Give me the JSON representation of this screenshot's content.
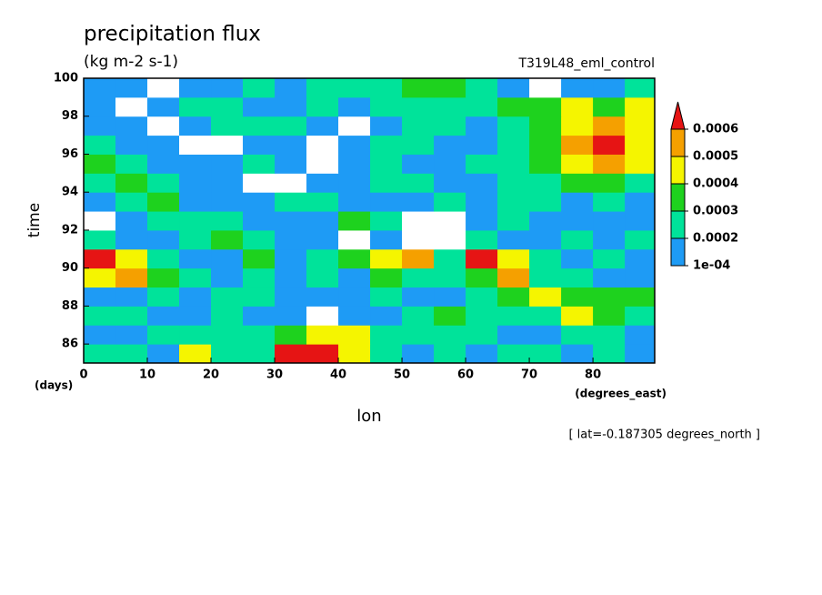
{
  "chart_data": {
    "type": "heatmap",
    "title": "precipitation flux",
    "subtitle": "(kg m-2 s-1)",
    "annotation": "T319L48_eml_control",
    "y_label": "time",
    "y_unit": "(days)",
    "x_label": "lon",
    "x_unit": "(degrees_east)",
    "footnote": "[ lat=-0.187305 degrees_north ]",
    "xlim": [
      0,
      89.7
    ],
    "xticks": [
      0,
      10,
      20,
      30,
      40,
      50,
      60,
      70,
      80
    ],
    "ylim": [
      85,
      100
    ],
    "yticks": [
      86,
      88,
      90,
      92,
      94,
      96,
      98,
      100
    ],
    "x": [
      2.5,
      7.5,
      12.5,
      17.5,
      22.5,
      27.5,
      32.5,
      37.5,
      42.5,
      47.5,
      52.5,
      57.5,
      62.5,
      67.5,
      72.5,
      77.5,
      82.5,
      87.5
    ],
    "y": [
      85.5,
      86.5,
      87.5,
      88.5,
      89.5,
      90.5,
      91.5,
      92.5,
      93.5,
      94.5,
      95.5,
      96.5,
      97.5,
      98.5,
      99.5
    ],
    "z": [
      [
        0.00025,
        0.00025,
        0.00015,
        0.00045,
        0.00025,
        0.00025,
        0.00065,
        0.00065,
        0.00045,
        0.00025,
        0.00015,
        0.00025,
        0.00015,
        0.00025,
        0.00025,
        0.00015,
        0.00025,
        0.00015
      ],
      [
        0.00015,
        0.00015,
        0.00025,
        0.00025,
        0.00025,
        0.00025,
        0.00035,
        0.00045,
        0.00045,
        0.00025,
        0.00025,
        0.00025,
        0.00025,
        0.00015,
        0.00015,
        0.00025,
        0.00025,
        0.00015
      ],
      [
        0.00025,
        0.00025,
        0.00015,
        0.00015,
        0.00025,
        0.00015,
        0.00015,
        8e-05,
        0.00015,
        0.00015,
        0.00025,
        0.00035,
        0.00025,
        0.00025,
        0.00025,
        0.00045,
        0.00035,
        0.00025
      ],
      [
        0.00015,
        0.00015,
        0.00025,
        0.00015,
        0.00025,
        0.00025,
        0.00015,
        0.00015,
        0.00015,
        0.00025,
        0.00015,
        0.00015,
        0.00025,
        0.00035,
        0.00045,
        0.00035,
        0.00035,
        0.00035
      ],
      [
        0.00045,
        0.00055,
        0.00035,
        0.00025,
        0.00015,
        0.00025,
        0.00015,
        0.00025,
        0.00015,
        0.00035,
        0.00025,
        0.00025,
        0.00035,
        0.00055,
        0.00025,
        0.00025,
        0.00015,
        0.00015
      ],
      [
        0.00065,
        0.00045,
        0.00025,
        0.00015,
        0.00015,
        0.00035,
        0.00015,
        0.00025,
        0.00035,
        0.00045,
        0.00055,
        0.00025,
        0.00065,
        0.00045,
        0.00025,
        0.00015,
        0.00025,
        0.00015
      ],
      [
        0.00025,
        0.00015,
        0.00015,
        0.00025,
        0.00035,
        0.00025,
        0.00015,
        0.00015,
        8e-05,
        0.00015,
        8e-05,
        8e-05,
        0.00025,
        0.00015,
        0.00015,
        0.00025,
        0.00015,
        0.00025
      ],
      [
        8e-05,
        0.00015,
        0.00025,
        0.00025,
        0.00025,
        0.00015,
        0.00015,
        0.00015,
        0.00035,
        0.00025,
        8e-05,
        8e-05,
        0.00015,
        0.00025,
        0.00015,
        0.00015,
        0.00015,
        0.00015
      ],
      [
        0.00015,
        0.00025,
        0.00035,
        0.00015,
        0.00015,
        0.00015,
        0.00025,
        0.00025,
        0.00015,
        0.00015,
        0.00015,
        0.00025,
        0.00015,
        0.00025,
        0.00025,
        0.00015,
        0.00025,
        0.00015
      ],
      [
        0.00025,
        0.00035,
        0.00025,
        0.00015,
        0.00015,
        8e-05,
        8e-05,
        0.00015,
        0.00015,
        0.00025,
        0.00025,
        0.00015,
        0.00015,
        0.00025,
        0.00025,
        0.00035,
        0.00035,
        0.00025
      ],
      [
        0.00035,
        0.00025,
        0.00015,
        0.00015,
        0.00015,
        0.00025,
        0.00015,
        8e-05,
        0.00015,
        0.00025,
        0.00015,
        0.00015,
        0.00025,
        0.0002,
        0.00035,
        0.00045,
        0.00055,
        0.00045
      ],
      [
        0.00025,
        0.00015,
        0.00015,
        8e-05,
        8e-05,
        0.00015,
        0.00015,
        8e-05,
        0.00015,
        0.0002,
        0.00025,
        0.00015,
        0.00015,
        0.00025,
        0.00035,
        0.00055,
        0.00065,
        0.00045
      ],
      [
        0.00015,
        0.00015,
        8e-05,
        0.00015,
        0.00025,
        0.0002,
        0.0002,
        0.00015,
        8e-05,
        0.00015,
        0.00025,
        0.00025,
        0.00015,
        0.00025,
        0.00035,
        0.00045,
        0.00055,
        0.00045
      ],
      [
        0.00015,
        8e-05,
        0.00015,
        0.00025,
        0.0002,
        0.00015,
        0.00015,
        0.0002,
        0.00015,
        0.00025,
        0.00025,
        0.0002,
        0.00025,
        0.00035,
        0.00035,
        0.00045,
        0.00035,
        0.00045
      ],
      [
        0.00015,
        0.00015,
        8e-05,
        0.00015,
        0.00015,
        0.00025,
        0.00015,
        0.00025,
        0.0002,
        0.00025,
        0.00035,
        0.00035,
        0.00025,
        0.00015,
        8e-05,
        0.00015,
        0.00015,
        0.00025
      ]
    ],
    "levels": [
      {
        "value": 0.0001,
        "label": "1e-04"
      },
      0.0002,
      0.0003,
      0.0004,
      0.0005,
      0.0006
    ],
    "colors": [
      "#ffffff",
      "#1e9bf5",
      "#00e39a",
      "#1ed21e",
      "#f5f500",
      "#f5a000",
      "#e61414"
    ]
  }
}
